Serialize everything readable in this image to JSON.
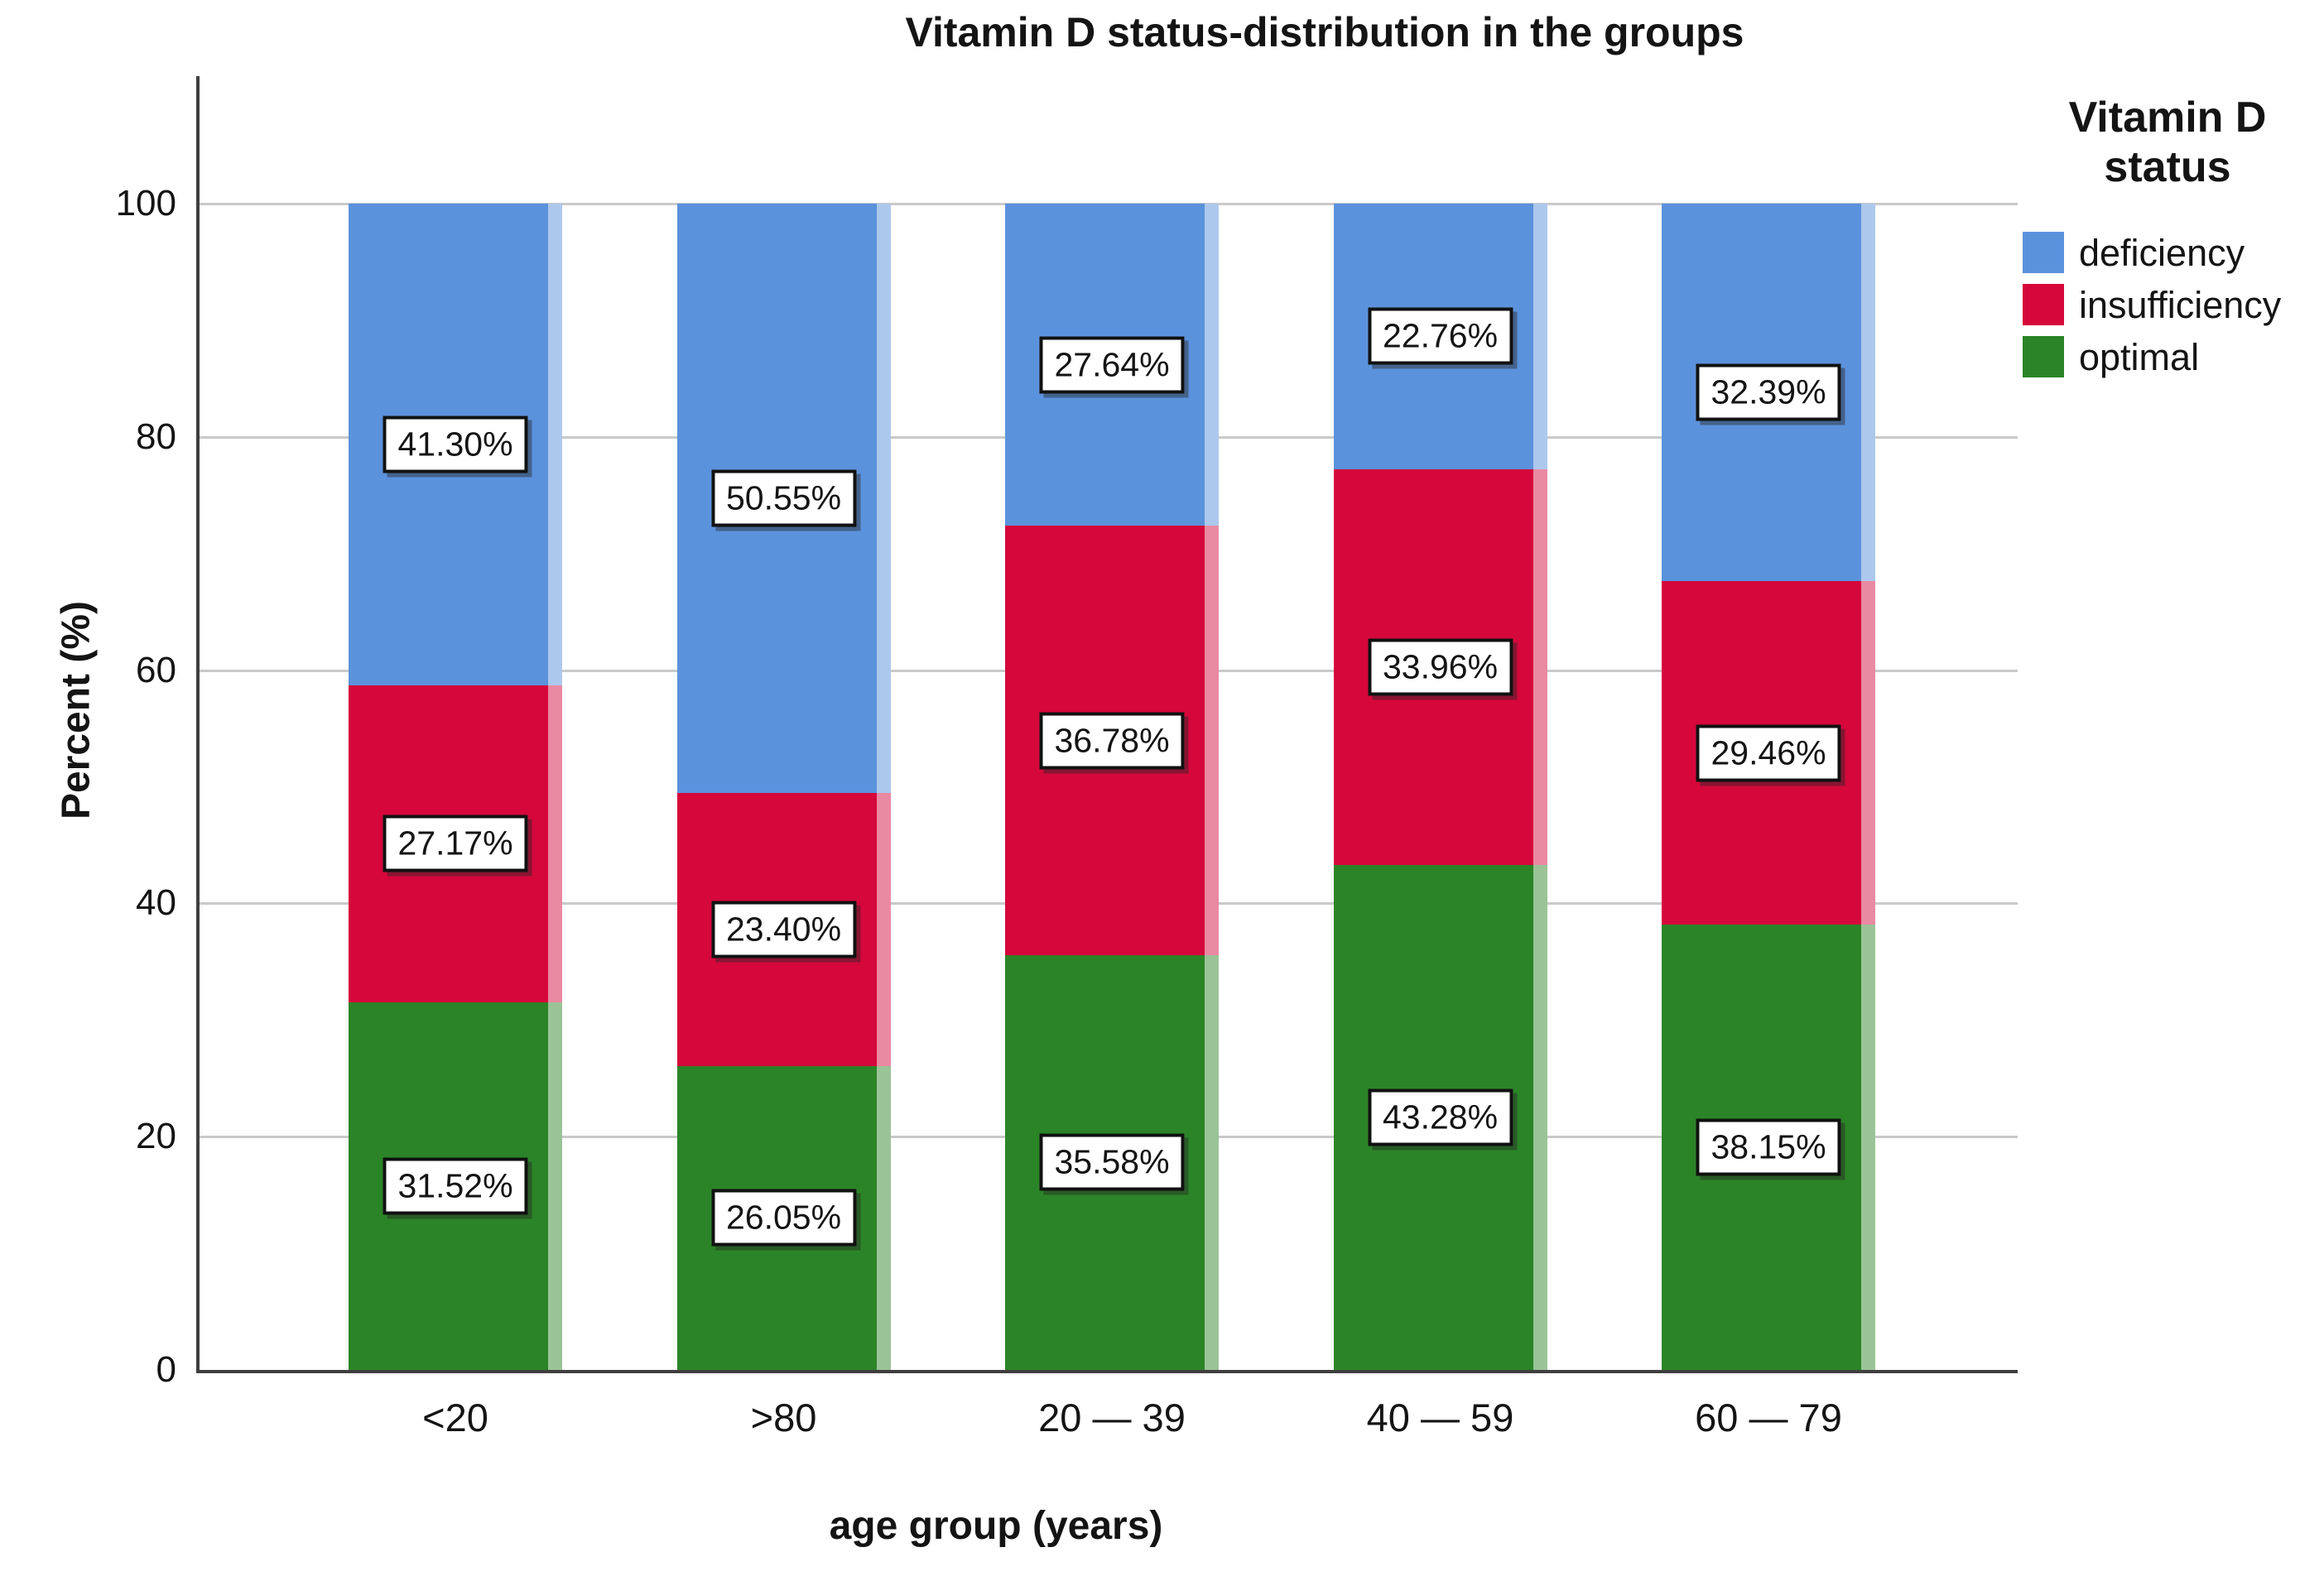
{
  "chart_data": {
    "type": "bar",
    "variant": "stacked-percent",
    "title": "Vitamin D status-distribution in the groups",
    "xlabel": "age group (years)",
    "ylabel": "Percent (%)",
    "categories": [
      "<20",
      ">80",
      "20 — 39",
      "40 — 59",
      "60 — 79"
    ],
    "series": [
      {
        "name": "deficiency",
        "color": "#5B92DC",
        "edge_highlight": "#ADC8ED",
        "values": [
          41.3,
          50.55,
          27.64,
          22.76,
          32.39
        ],
        "labels": [
          "41.30%",
          "50.55%",
          "27.64%",
          "22.76%",
          "32.39%"
        ]
      },
      {
        "name": "insufficiency",
        "color": "#D5073B",
        "edge_highlight": "#EA89A2",
        "values": [
          27.17,
          23.4,
          36.78,
          33.96,
          29.46
        ],
        "labels": [
          "27.17%",
          "23.40%",
          "36.78%",
          "33.96%",
          "29.46%"
        ]
      },
      {
        "name": "optimal",
        "color": "#2B8427",
        "edge_highlight": "#9AC497",
        "values": [
          31.52,
          26.05,
          35.58,
          43.28,
          38.15
        ],
        "labels": [
          "31.52%",
          "26.05%",
          "35.58%",
          "43.28%",
          "38.15%"
        ]
      }
    ],
    "stack_order_bottom_to_top": [
      "optimal",
      "insufficiency",
      "deficiency"
    ],
    "y_ticks": [
      0,
      20,
      40,
      60,
      80,
      100
    ],
    "ylim": [
      0,
      111
    ],
    "grid": "horizontal",
    "legend": {
      "title_lines": [
        "Vitamin D",
        "status"
      ],
      "position": "right",
      "entries": [
        "deficiency",
        "insufficiency",
        "optimal"
      ]
    },
    "colors": {
      "axis": "#3F3F3F",
      "gridline": "#C9C9C9",
      "label_box_bg": "#FFFFFF",
      "label_box_border": "#111111",
      "text": "#141414",
      "background": "#FFFFFF"
    }
  }
}
